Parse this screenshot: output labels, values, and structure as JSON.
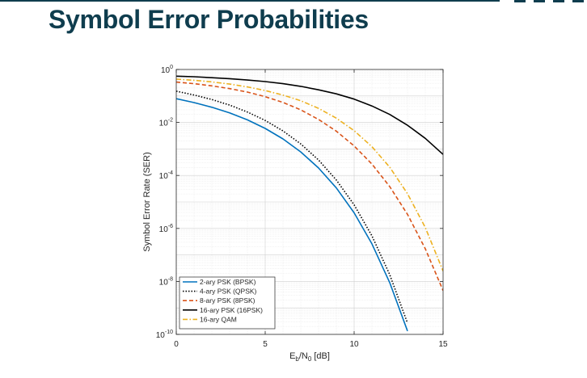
{
  "slide": {
    "title": "Symbol Error Probabilities"
  },
  "chart_data": {
    "type": "line",
    "title": "",
    "xlabel_base": "E",
    "xlabel_sub1": "b",
    "xlabel_mid": "/N",
    "xlabel_sub2": "0",
    "xlabel_tail": " [dB]",
    "ylabel": "Symbol Error Rate (SER)",
    "xlim": [
      0,
      15
    ],
    "ylim_log10": [
      -10,
      0
    ],
    "yscale": "log",
    "grid": true,
    "legend_position": "bottom-left",
    "x_ticks": [
      0,
      5,
      10,
      15
    ],
    "x_tick_labels": [
      "0",
      "5",
      "10",
      "15"
    ],
    "y_ticks_log10": [
      -10,
      -8,
      -6,
      -4,
      -2,
      0
    ],
    "y_tick_base": "10",
    "y_tick_exponents": [
      "-10",
      "-8",
      "-6",
      "-4",
      "-2",
      "0"
    ],
    "series": [
      {
        "name": "2-ary PSK (BPSK)",
        "color": "#0072BD",
        "dash": "solid",
        "x": [
          0,
          1,
          2,
          3,
          4,
          5,
          6,
          7,
          8,
          9,
          10,
          11,
          12,
          13
        ],
        "y": [
          0.0786,
          0.0563,
          0.0375,
          0.0229,
          0.0125,
          0.00595,
          0.00239,
          0.000773,
          0.000191,
          3.36e-05,
          3.87e-06,
          2.62e-07,
          9.01e-09,
          1.34e-10
        ]
      },
      {
        "name": "4-ary PSK (QPSK)",
        "color": "#000000",
        "dash": "dotted",
        "x": [
          0,
          1,
          2,
          3,
          4,
          5,
          6,
          7,
          8,
          9,
          10,
          11,
          12,
          13
        ],
        "y": [
          0.151,
          0.109,
          0.0736,
          0.0453,
          0.0248,
          0.0119,
          0.00477,
          0.00155,
          0.000382,
          6.72e-05,
          7.74e-06,
          5.24e-07,
          1.8e-08,
          2.68e-10
        ]
      },
      {
        "name": "8-ary PSK (8PSK)",
        "color": "#D95319",
        "dash": "dashed",
        "x": [
          0,
          1,
          2,
          3,
          4,
          5,
          6,
          7,
          8,
          9,
          10,
          11,
          12,
          13,
          14,
          15
        ],
        "y": [
          0.335,
          0.29,
          0.24,
          0.19,
          0.14,
          0.094,
          0.057,
          0.03,
          0.013,
          0.0047,
          0.0013,
          0.00027,
          3.8e-05,
          3.4e-06,
          1.7e-07,
          4.5e-09
        ]
      },
      {
        "name": "16-ary PSK (16PSK)",
        "color": "#000000",
        "dash": "solid",
        "x": [
          0,
          1,
          2,
          3,
          4,
          5,
          6,
          7,
          8,
          9,
          10,
          11,
          12,
          13,
          14,
          15
        ],
        "y": [
          0.56,
          0.53,
          0.49,
          0.45,
          0.4,
          0.35,
          0.29,
          0.23,
          0.17,
          0.12,
          0.076,
          0.042,
          0.02,
          0.0078,
          0.0025,
          0.00062
        ]
      },
      {
        "name": "16-ary QAM",
        "color": "#EDB120",
        "dash": "dashdot",
        "x": [
          0,
          1,
          2,
          3,
          4,
          5,
          6,
          7,
          8,
          9,
          10,
          11,
          12,
          13,
          14,
          15
        ],
        "y": [
          0.43,
          0.39,
          0.34,
          0.28,
          0.22,
          0.16,
          0.108,
          0.066,
          0.034,
          0.0145,
          0.0049,
          0.00122,
          0.000204,
          2.05e-05,
          1.08e-06,
          2.45e-08
        ]
      }
    ]
  }
}
